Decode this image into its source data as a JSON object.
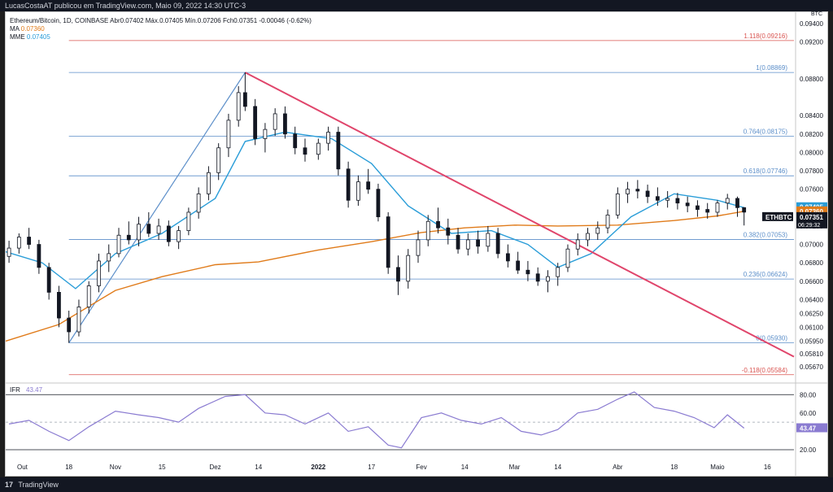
{
  "header": {
    "published_by": "LucasCostaAT publicou em TradingView.com, Maio 09, 2022 14:30 UTC-3"
  },
  "legend": {
    "symbol_line": "Ethereum/Bitcoin, 1D, COINBASE",
    "ohlc": "Abr0.07402  Máx.0.07405  Mín.0.07206  Fch0.07351  -0.00046 (-0.62%)",
    "ma_label": "MA",
    "ma_value": "0.07360",
    "mme_label": "MME",
    "mme_value": "0.07405"
  },
  "footer": {
    "brand_mark": "17",
    "brand": "TradingView"
  },
  "colors": {
    "ma": "#e07b1a",
    "mme": "#2a9dd8",
    "trendline": "#e0456b",
    "fib": "#5b8ec9",
    "fib_ext": "#d9534f",
    "up": "#ffffff",
    "down": "#131722",
    "rsi": "#8a7bd1"
  },
  "chart_data": [
    {
      "type": "candlestick",
      "title": "ETHBTC",
      "currency": "BTC",
      "y_axis_labels": [
        "0.09400",
        "0.09200",
        "0.08800",
        "0.08400",
        "0.08200",
        "0.08000",
        "0.07800",
        "0.07600",
        "0.07400",
        "0.07200",
        "0.07000",
        "0.06800",
        "0.06600",
        "0.06400",
        "0.06250",
        "0.06100",
        "0.05950",
        "0.05810",
        "0.05670"
      ],
      "ylim": [
        0.0552,
        0.0948
      ],
      "x_labels": [
        "Out",
        "18",
        "Nov",
        "15",
        "Dez",
        "14",
        "2022",
        "17",
        "Fev",
        "14",
        "Mar",
        "14",
        "Abr",
        "18",
        "Maio",
        "16"
      ],
      "x_label_dates": [
        "2021-10-04",
        "2021-10-18",
        "2021-11-01",
        "2021-11-15",
        "2021-12-01",
        "2021-12-14",
        "2022-01-01",
        "2022-01-17",
        "2022-02-01",
        "2022-02-14",
        "2022-03-01",
        "2022-03-14",
        "2022-04-01",
        "2022-04-18",
        "2022-05-01",
        "2022-05-16"
      ],
      "xlim": [
        "2021-09-29",
        "2022-05-24"
      ],
      "last_price": {
        "symbol": "ETHBTC",
        "value": "0.07351",
        "countdown": "06:29:32"
      },
      "mme_tag": "0.07405",
      "ma_tag": "0.07360",
      "fibonacci": [
        {
          "label": "1.118(0.09216)",
          "value": 0.09216,
          "kind": "ext"
        },
        {
          "label": "1(0.08869)",
          "value": 0.08869,
          "kind": "fib"
        },
        {
          "label": "0.764(0.08175)",
          "value": 0.08175,
          "kind": "fib"
        },
        {
          "label": "0.618(0.07746)",
          "value": 0.07746,
          "kind": "fib"
        },
        {
          "label": "0.382(0.07053)",
          "value": 0.07053,
          "kind": "fib"
        },
        {
          "label": "0.236(0.06624)",
          "value": 0.06624,
          "kind": "fib"
        },
        {
          "label": "0(0.05930)",
          "value": 0.0593,
          "kind": "fib"
        },
        {
          "label": "-0.118(0.05584)",
          "value": 0.05584,
          "kind": "ext"
        }
      ],
      "fib_start": "2021-10-18",
      "trendline": [
        [
          "2021-12-10",
          0.08869
        ],
        [
          "2022-05-24",
          0.0578
        ]
      ],
      "fib_impulse": [
        [
          "2021-10-18",
          0.0593
        ],
        [
          "2021-12-10",
          0.08869
        ]
      ],
      "ma_series": [
        [
          "2021-09-29",
          0.0595
        ],
        [
          "2021-10-15",
          0.0613
        ],
        [
          "2021-11-01",
          0.065
        ],
        [
          "2021-11-15",
          0.0665
        ],
        [
          "2021-12-01",
          0.0678
        ],
        [
          "2021-12-14",
          0.0681
        ],
        [
          "2022-01-01",
          0.0694
        ],
        [
          "2022-01-17",
          0.0703
        ],
        [
          "2022-02-01",
          0.0713
        ],
        [
          "2022-02-14",
          0.0718
        ],
        [
          "2022-03-01",
          0.0721
        ],
        [
          "2022-03-14",
          0.072
        ],
        [
          "2022-04-01",
          0.0721
        ],
        [
          "2022-04-18",
          0.0726
        ],
        [
          "2022-05-01",
          0.0731
        ],
        [
          "2022-05-09",
          0.0736
        ]
      ],
      "mme_series": [
        [
          "2021-09-29",
          0.0692
        ],
        [
          "2021-10-10",
          0.068
        ],
        [
          "2021-10-20",
          0.0652
        ],
        [
          "2021-11-01",
          0.069
        ],
        [
          "2021-11-15",
          0.0712
        ],
        [
          "2021-12-01",
          0.075
        ],
        [
          "2021-12-10",
          0.0812
        ],
        [
          "2021-12-22",
          0.0822
        ],
        [
          "2022-01-05",
          0.0815
        ],
        [
          "2022-01-17",
          0.0788
        ],
        [
          "2022-01-28",
          0.0742
        ],
        [
          "2022-02-10",
          0.0712
        ],
        [
          "2022-02-22",
          0.0715
        ],
        [
          "2022-03-05",
          0.07
        ],
        [
          "2022-03-14",
          0.0675
        ],
        [
          "2022-03-24",
          0.069
        ],
        [
          "2022-04-05",
          0.073
        ],
        [
          "2022-04-18",
          0.0755
        ],
        [
          "2022-05-01",
          0.0748
        ],
        [
          "2022-05-09",
          0.074
        ]
      ],
      "candles": [
        [
          "2021-09-30",
          0.0687,
          0.0704,
          0.068,
          0.0696
        ],
        [
          "2021-10-03",
          0.0696,
          0.0712,
          0.069,
          0.0708
        ],
        [
          "2021-10-06",
          0.0708,
          0.0718,
          0.0695,
          0.07
        ],
        [
          "2021-10-09",
          0.07,
          0.0705,
          0.0668,
          0.0675
        ],
        [
          "2021-10-12",
          0.0675,
          0.068,
          0.064,
          0.0648
        ],
        [
          "2021-10-15",
          0.0648,
          0.0655,
          0.061,
          0.062
        ],
        [
          "2021-10-18",
          0.062,
          0.0628,
          0.0593,
          0.0605
        ],
        [
          "2021-10-21",
          0.0605,
          0.064,
          0.06,
          0.0632
        ],
        [
          "2021-10-24",
          0.0632,
          0.066,
          0.0625,
          0.0655
        ],
        [
          "2021-10-27",
          0.0655,
          0.069,
          0.0648,
          0.0682
        ],
        [
          "2021-10-30",
          0.0682,
          0.07,
          0.067,
          0.069
        ],
        [
          "2021-11-02",
          0.069,
          0.0718,
          0.0686,
          0.071
        ],
        [
          "2021-11-05",
          0.071,
          0.0725,
          0.07,
          0.0705
        ],
        [
          "2021-11-08",
          0.0705,
          0.073,
          0.0698,
          0.0722
        ],
        [
          "2021-11-11",
          0.0722,
          0.0735,
          0.0708,
          0.0712
        ],
        [
          "2021-11-14",
          0.0712,
          0.0728,
          0.0705,
          0.072
        ],
        [
          "2021-11-17",
          0.072,
          0.0726,
          0.0698,
          0.0703
        ],
        [
          "2021-11-20",
          0.0703,
          0.072,
          0.0695,
          0.0715
        ],
        [
          "2021-11-23",
          0.0715,
          0.074,
          0.071,
          0.0735
        ],
        [
          "2021-11-26",
          0.0735,
          0.0762,
          0.0728,
          0.0755
        ],
        [
          "2021-11-29",
          0.0755,
          0.0785,
          0.0748,
          0.0778
        ],
        [
          "2021-12-02",
          0.0778,
          0.081,
          0.077,
          0.0805
        ],
        [
          "2021-12-05",
          0.0805,
          0.0842,
          0.0795,
          0.0835
        ],
        [
          "2021-12-08",
          0.0835,
          0.0872,
          0.0828,
          0.0865
        ],
        [
          "2021-12-10",
          0.0865,
          0.0887,
          0.0845,
          0.085
        ],
        [
          "2021-12-13",
          0.085,
          0.0858,
          0.0808,
          0.0815
        ],
        [
          "2021-12-16",
          0.0815,
          0.0832,
          0.08,
          0.0825
        ],
        [
          "2021-12-19",
          0.0825,
          0.0848,
          0.0818,
          0.0842
        ],
        [
          "2021-12-22",
          0.0842,
          0.085,
          0.0815,
          0.082
        ],
        [
          "2021-12-25",
          0.082,
          0.0828,
          0.0798,
          0.0805
        ],
        [
          "2021-12-28",
          0.0805,
          0.0815,
          0.079,
          0.0798
        ],
        [
          "2022-01-01",
          0.0798,
          0.0815,
          0.0792,
          0.081
        ],
        [
          "2022-01-04",
          0.081,
          0.0828,
          0.0802,
          0.0822
        ],
        [
          "2022-01-07",
          0.0822,
          0.0828,
          0.0775,
          0.0782
        ],
        [
          "2022-01-10",
          0.0782,
          0.079,
          0.074,
          0.0748
        ],
        [
          "2022-01-13",
          0.0748,
          0.0775,
          0.0742,
          0.0768
        ],
        [
          "2022-01-16",
          0.0768,
          0.0782,
          0.0755,
          0.076
        ],
        [
          "2022-01-19",
          0.076,
          0.0766,
          0.0725,
          0.073
        ],
        [
          "2022-01-22",
          0.073,
          0.0735,
          0.0668,
          0.0675
        ],
        [
          "2022-01-25",
          0.0675,
          0.0688,
          0.0645,
          0.066
        ],
        [
          "2022-01-28",
          0.066,
          0.0695,
          0.0652,
          0.0688
        ],
        [
          "2022-01-31",
          0.0688,
          0.0715,
          0.068,
          0.0705
        ],
        [
          "2022-02-03",
          0.0705,
          0.0732,
          0.0698,
          0.0725
        ],
        [
          "2022-02-06",
          0.0725,
          0.074,
          0.0712,
          0.0718
        ],
        [
          "2022-02-09",
          0.0718,
          0.0728,
          0.07,
          0.071
        ],
        [
          "2022-02-12",
          0.071,
          0.0718,
          0.069,
          0.0695
        ],
        [
          "2022-02-15",
          0.0695,
          0.0712,
          0.0688,
          0.0705
        ],
        [
          "2022-02-18",
          0.0705,
          0.0715,
          0.069,
          0.0698
        ],
        [
          "2022-02-21",
          0.0698,
          0.072,
          0.0692,
          0.0712
        ],
        [
          "2022-02-24",
          0.0712,
          0.0718,
          0.0685,
          0.069
        ],
        [
          "2022-02-27",
          0.069,
          0.07,
          0.0675,
          0.0682
        ],
        [
          "2022-03-02",
          0.0682,
          0.0692,
          0.0668,
          0.0672
        ],
        [
          "2022-03-05",
          0.0672,
          0.0682,
          0.066,
          0.0668
        ],
        [
          "2022-03-08",
          0.0668,
          0.0675,
          0.0655,
          0.066
        ],
        [
          "2022-03-11",
          0.066,
          0.0672,
          0.0648,
          0.0665
        ],
        [
          "2022-03-14",
          0.0665,
          0.068,
          0.0655,
          0.0675
        ],
        [
          "2022-03-17",
          0.0675,
          0.07,
          0.067,
          0.0695
        ],
        [
          "2022-03-20",
          0.0695,
          0.0712,
          0.0688,
          0.0705
        ],
        [
          "2022-03-23",
          0.0705,
          0.0718,
          0.0698,
          0.0712
        ],
        [
          "2022-03-26",
          0.0712,
          0.0725,
          0.0705,
          0.0718
        ],
        [
          "2022-03-29",
          0.0718,
          0.0738,
          0.0712,
          0.0732
        ],
        [
          "2022-04-01",
          0.0732,
          0.0762,
          0.0728,
          0.0755
        ],
        [
          "2022-04-04",
          0.0755,
          0.0768,
          0.0745,
          0.076
        ],
        [
          "2022-04-07",
          0.076,
          0.077,
          0.075,
          0.0758
        ],
        [
          "2022-04-10",
          0.0758,
          0.0765,
          0.0745,
          0.0752
        ],
        [
          "2022-04-13",
          0.0752,
          0.0762,
          0.0742,
          0.0748
        ],
        [
          "2022-04-16",
          0.0748,
          0.0758,
          0.074,
          0.075
        ],
        [
          "2022-04-19",
          0.075,
          0.0756,
          0.0738,
          0.0745
        ],
        [
          "2022-04-22",
          0.0745,
          0.0752,
          0.0735,
          0.0742
        ],
        [
          "2022-04-25",
          0.0742,
          0.0748,
          0.073,
          0.0738
        ],
        [
          "2022-04-28",
          0.0738,
          0.0745,
          0.0728,
          0.0735
        ],
        [
          "2022-05-01",
          0.0735,
          0.0748,
          0.073,
          0.0745
        ],
        [
          "2022-05-04",
          0.0745,
          0.0755,
          0.0738,
          0.075
        ],
        [
          "2022-05-07",
          0.075,
          0.0752,
          0.073,
          0.074
        ],
        [
          "2022-05-09",
          0.074,
          0.07405,
          0.07206,
          0.07351
        ]
      ]
    },
    {
      "type": "line",
      "title": "IFR",
      "value_label": "43.47",
      "y_axis_labels": [
        "80.00",
        "60.00",
        "20.00"
      ],
      "ylim": [
        12,
        90
      ],
      "levels": [
        80,
        50,
        20
      ],
      "series": [
        {
          "values": [
            [
              "2021-09-30",
              48
            ],
            [
              "2021-10-06",
              52
            ],
            [
              "2021-10-12",
              40
            ],
            [
              "2021-10-18",
              30
            ],
            [
              "2021-10-24",
              45
            ],
            [
              "2021-11-01",
              62
            ],
            [
              "2021-11-08",
              58
            ],
            [
              "2021-11-14",
              55
            ],
            [
              "2021-11-20",
              50
            ],
            [
              "2021-11-26",
              65
            ],
            [
              "2021-12-04",
              78
            ],
            [
              "2021-12-10",
              80
            ],
            [
              "2021-12-16",
              60
            ],
            [
              "2021-12-22",
              58
            ],
            [
              "2021-12-28",
              48
            ],
            [
              "2022-01-04",
              60
            ],
            [
              "2022-01-10",
              40
            ],
            [
              "2022-01-16",
              45
            ],
            [
              "2022-01-22",
              25
            ],
            [
              "2022-01-26",
              22
            ],
            [
              "2022-02-01",
              55
            ],
            [
              "2022-02-07",
              60
            ],
            [
              "2022-02-13",
              52
            ],
            [
              "2022-02-19",
              48
            ],
            [
              "2022-02-25",
              55
            ],
            [
              "2022-03-03",
              40
            ],
            [
              "2022-03-09",
              36
            ],
            [
              "2022-03-14",
              42
            ],
            [
              "2022-03-20",
              60
            ],
            [
              "2022-03-26",
              64
            ],
            [
              "2022-04-01",
              75
            ],
            [
              "2022-04-06",
              83
            ],
            [
              "2022-04-12",
              66
            ],
            [
              "2022-04-18",
              62
            ],
            [
              "2022-04-24",
              55
            ],
            [
              "2022-04-30",
              44
            ],
            [
              "2022-05-04",
              58
            ],
            [
              "2022-05-09",
              43.47
            ]
          ]
        }
      ]
    }
  ]
}
